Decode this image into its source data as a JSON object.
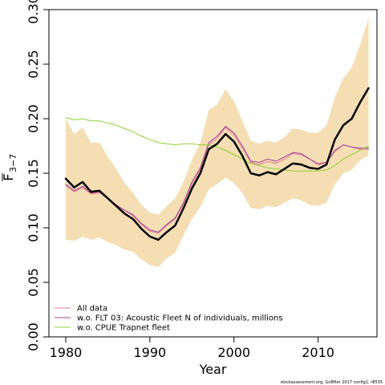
{
  "chart_data": {
    "type": "line",
    "xlabel": "Year",
    "ylabel": "F̅3−7",
    "ylabel_main": "F",
    "ylabel_sub": "3−7",
    "xlim": [
      1978,
      2017
    ],
    "ylim": [
      0,
      0.3
    ],
    "x_ticks": [
      1980,
      1990,
      2000,
      2010
    ],
    "y_ticks": [
      "0.00",
      "0.05",
      "0.10",
      "0.15",
      "0.20",
      "0.25",
      "0.30"
    ],
    "grid": false,
    "legend_position": "bottom-left",
    "footer": "stockassessment.org, GoBHer 2017 config1, r8535",
    "x": [
      1980,
      1981,
      1982,
      1983,
      1984,
      1985,
      1986,
      1987,
      1988,
      1989,
      1990,
      1991,
      1992,
      1993,
      1994,
      1995,
      1996,
      1997,
      1998,
      1999,
      2000,
      2001,
      2002,
      2003,
      2004,
      2005,
      2006,
      2007,
      2008,
      2009,
      2010,
      2011,
      2012,
      2013,
      2014,
      2015,
      2016
    ],
    "band": {
      "color": "#f5deb3",
      "lower": [
        0.089,
        0.088,
        0.092,
        0.089,
        0.091,
        0.087,
        0.084,
        0.08,
        0.078,
        0.071,
        0.066,
        0.064,
        0.072,
        0.077,
        0.093,
        0.108,
        0.119,
        0.135,
        0.14,
        0.146,
        0.141,
        0.132,
        0.118,
        0.117,
        0.12,
        0.119,
        0.123,
        0.127,
        0.125,
        0.121,
        0.12,
        0.123,
        0.14,
        0.15,
        0.153,
        0.162,
        0.166
      ],
      "upper": [
        0.2,
        0.186,
        0.192,
        0.178,
        0.178,
        0.165,
        0.154,
        0.141,
        0.132,
        0.121,
        0.114,
        0.112,
        0.12,
        0.127,
        0.142,
        0.162,
        0.178,
        0.208,
        0.213,
        0.227,
        0.216,
        0.198,
        0.18,
        0.177,
        0.18,
        0.178,
        0.183,
        0.191,
        0.19,
        0.187,
        0.187,
        0.194,
        0.22,
        0.237,
        0.247,
        0.268,
        0.292
      ]
    },
    "series": [
      {
        "name": "All data",
        "color": "#000000",
        "width": 2.5,
        "in_legend": false,
        "values": [
          0.145,
          0.137,
          0.142,
          0.133,
          0.134,
          0.127,
          0.12,
          0.113,
          0.108,
          0.099,
          0.092,
          0.089,
          0.096,
          0.102,
          0.118,
          0.136,
          0.15,
          0.172,
          0.177,
          0.186,
          0.179,
          0.166,
          0.15,
          0.148,
          0.151,
          0.149,
          0.154,
          0.159,
          0.158,
          0.155,
          0.154,
          0.158,
          0.181,
          0.194,
          0.2,
          0.215,
          0.228
        ]
      },
      {
        "name": "All data",
        "color": "#e87989",
        "width": 1,
        "in_legend": true,
        "values": [
          0.139,
          0.133,
          0.137,
          0.131,
          0.132,
          0.127,
          0.121,
          0.116,
          0.111,
          0.103,
          0.097,
          0.095,
          0.102,
          0.108,
          0.122,
          0.14,
          0.153,
          0.176,
          0.182,
          0.192,
          0.185,
          0.173,
          0.16,
          0.158,
          0.161,
          0.159,
          0.163,
          0.168,
          0.167,
          0.163,
          0.159,
          0.16,
          0.17,
          0.176,
          0.174,
          0.172,
          0.172
        ]
      },
      {
        "name": "w.o. FLT 03: Acoustic Fleet   N of individuals, millions",
        "color": "#9b3fa3",
        "width": 1,
        "in_legend": true,
        "values": [
          0.14,
          0.134,
          0.138,
          0.132,
          0.133,
          0.127,
          0.121,
          0.116,
          0.112,
          0.104,
          0.098,
          0.096,
          0.103,
          0.109,
          0.123,
          0.142,
          0.155,
          0.178,
          0.184,
          0.193,
          0.187,
          0.175,
          0.161,
          0.16,
          0.163,
          0.161,
          0.165,
          0.169,
          0.168,
          0.163,
          0.158,
          0.16,
          0.171,
          0.176,
          0.174,
          0.173,
          0.173
        ]
      },
      {
        "name": "w.o. CPUE Trapnet fleet",
        "color": "#8ed034",
        "width": 1,
        "in_legend": true,
        "values": [
          0.201,
          0.199,
          0.2,
          0.198,
          0.198,
          0.196,
          0.194,
          0.191,
          0.188,
          0.184,
          0.181,
          0.178,
          0.177,
          0.176,
          0.177,
          0.177,
          0.176,
          0.176,
          0.174,
          0.171,
          0.167,
          0.163,
          0.159,
          0.157,
          0.155,
          0.154,
          0.153,
          0.152,
          0.152,
          0.152,
          0.152,
          0.153,
          0.157,
          0.163,
          0.167,
          0.171,
          0.175
        ]
      }
    ]
  }
}
